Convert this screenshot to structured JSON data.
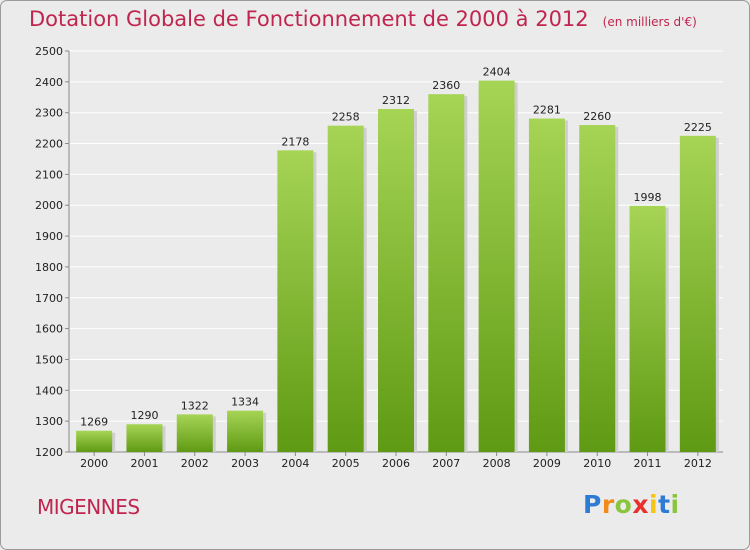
{
  "title": "Dotation Globale de Fonctionnement de 2000 à 2012",
  "unit_label": "(en milliers d'€)",
  "commune": "MIGENNES",
  "logo": "Proxiti",
  "colors": {
    "title": "#c0254f",
    "bar_top": "#a6d455",
    "bar_bottom": "#5f9a14",
    "plot_bg": "#ebebeb",
    "grid": "#ffffff"
  },
  "chart_data": {
    "type": "bar",
    "categories": [
      "2000",
      "2001",
      "2002",
      "2003",
      "2004",
      "2005",
      "2006",
      "2007",
      "2008",
      "2009",
      "2010",
      "2011",
      "2012"
    ],
    "values": [
      1269,
      1290,
      1322,
      1334,
      2178,
      2258,
      2312,
      2360,
      2404,
      2281,
      2260,
      1998,
      2225
    ],
    "data_labels": [
      "1269",
      "1290",
      "1322",
      "1334",
      "2178",
      "2258",
      "2312",
      "2360",
      "2404",
      "2281",
      "2260",
      "1998",
      "2225"
    ],
    "y_ticks": [
      "1200",
      "1300",
      "1400",
      "1500",
      "1600",
      "1700",
      "1800",
      "1900",
      "2000",
      "2100",
      "2200",
      "2300",
      "2400",
      "2500"
    ],
    "ylim": [
      1200,
      2500
    ],
    "grid": true
  }
}
